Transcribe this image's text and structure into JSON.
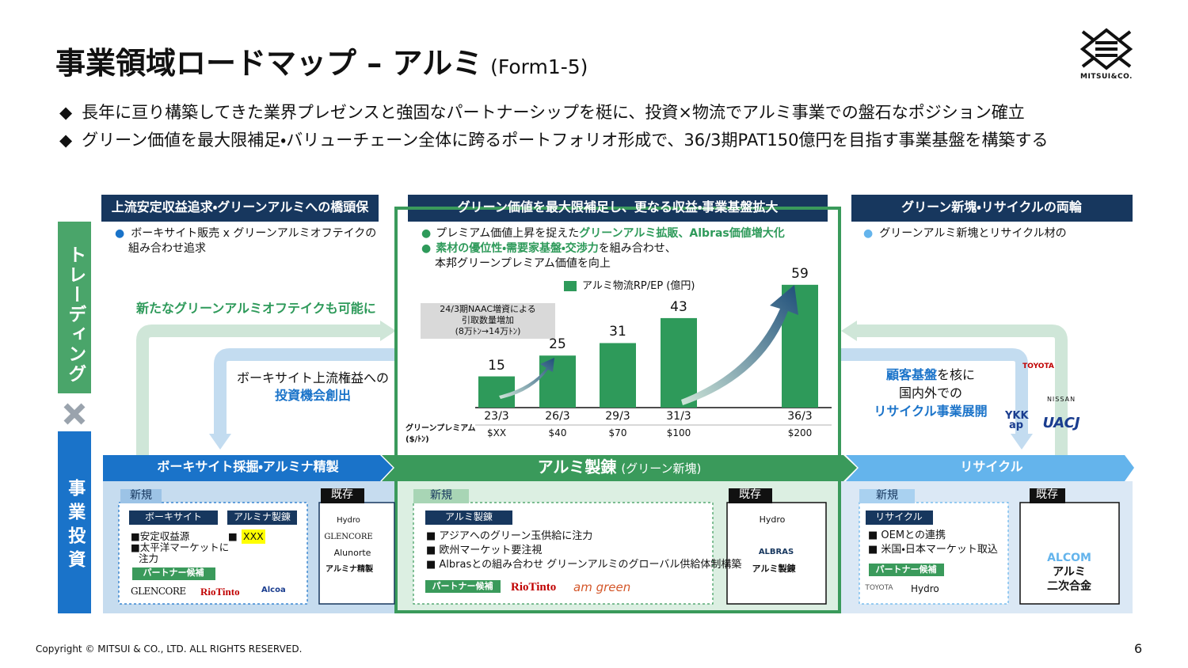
{
  "header": {
    "title": "事業領域ロードマップ – アルミ",
    "form": "(Form1-5)",
    "logo": "MITSUI&CO."
  },
  "bullets": [
    "長年に亘り構築してきた業界プレゼンスと強固なパートナーシップを梃に、投資×物流でアルミ事業での盤石なポジション確立",
    "グリーン価値を最大限補足・バリューチェーン全体に跨るポートフォリオ形成で、36/3期PAT150億円を目指す事業基盤を構築する"
  ],
  "side": {
    "trading": "トレーディング",
    "investment": "事業投資"
  },
  "phases": [
    {
      "heading": "上流安定収益追求・グリーンアルミへの橋頭保",
      "notes": [
        "ボーキサイト販売 x グリーンアルミオフテイクの",
        "組み合わせ追求"
      ]
    },
    {
      "heading": "グリーン価値を最大限補足し、更なる収益・事業基盤拡大",
      "notes": [
        [
          "プレミアム価値上昇を捉えた",
          "グリーンアルミ拡販、Albras価値増大化"
        ],
        [
          "素材の優位性・需要家基盤・交渉力",
          "を組み合わせ、"
        ],
        [
          "本邦グリーンプレミアム価値を向上"
        ]
      ]
    },
    {
      "heading": "グリーン新塊・リサイクルの両輪",
      "notes": [
        "グリーンアルミ新塊とリサイクル材の"
      ]
    }
  ],
  "flows": {
    "left_trading": "新たなグリーンアルミオフテイクも可能に",
    "left_invest": [
      "ボーキサイト上流権益への",
      "投資機会創出"
    ],
    "right": [
      "顧客基盤",
      "を核に",
      "国内外での",
      "リサイクル事業展開"
    ],
    "right_partners": [
      "TOYOTA",
      "NISSAN",
      "YKK ap",
      "UACJ"
    ]
  },
  "chart": {
    "type": "bar",
    "legend": "アルミ物流RP/EP (億円)",
    "color": "#2e9a5a",
    "categories": [
      "23/3",
      "26/3",
      "29/3",
      "31/3",
      "36/3"
    ],
    "values": [
      15,
      25,
      31,
      43,
      59
    ],
    "premium_label": [
      "グリーンプレミアム",
      "($/ﾄﾝ)"
    ],
    "premium": [
      "$XX",
      "$40",
      "$70",
      "$100",
      "$200"
    ],
    "note": [
      "24/3期NAAC増資による",
      "引取数量増加",
      "(8万ﾄﾝ→14万ﾄﾝ)"
    ]
  },
  "segments": [
    {
      "banner": "ボーキサイト採掘・アルミナ精製",
      "new_tag": "新規",
      "existing_tag": "既存",
      "new": {
        "groups": [
          {
            "heading": "ボーキサイト",
            "lines": [
              "■安定収益源",
              "■太平洋マーケットに",
              "注力"
            ]
          },
          {
            "heading": "アルミナ製錬",
            "lines": [
              "■",
              "XXX"
            ]
          }
        ],
        "partner_tag": "パートナー候補",
        "partners": [
          "GLENCORE",
          "RioTinto",
          "Alcoa"
        ]
      },
      "existing": [
        "Hydro",
        "GLENCORE",
        "Alunorte",
        "アルミナ精製"
      ]
    },
    {
      "banner": "アルミ製錬",
      "banner_sub": "(グリーン新塊)",
      "new_tag": "新規",
      "existing_tag": "既存",
      "new": {
        "groups": [
          {
            "heading": "アルミ製錬",
            "lines": [
              "■ アジアへのグリーン玉供給に注力",
              "■ 欧州マーケット要注視",
              "■ Albrasとの組み合わせ グリーンアルミのグローバル供給体制構築"
            ]
          }
        ],
        "partner_tag": "パートナー候補",
        "partners": [
          "RioTinto",
          "am green"
        ]
      },
      "existing": [
        "Hydro",
        "ALBRAS",
        "アルミ製錬"
      ]
    },
    {
      "banner": "リサイクル",
      "new_tag": "新規",
      "existing_tag": "既存",
      "new": {
        "groups": [
          {
            "heading": "リサイクル",
            "lines": [
              "■ OEMとの連携",
              "■ 米国・日本マーケット取込"
            ]
          }
        ],
        "partner_tag": "パートナー候補",
        "partners": [
          "TOYOTA",
          "Hydro"
        ]
      },
      "existing": [
        "ALCOM",
        "アルミ",
        "二次合金"
      ]
    }
  ],
  "footer": {
    "copyright": "Copyright © MITSUI & CO., LTD. ALL RIGHTS RESERVED.",
    "page": "6"
  }
}
